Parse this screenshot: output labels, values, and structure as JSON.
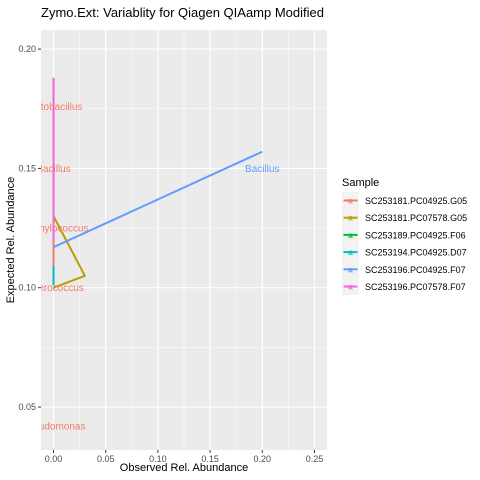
{
  "chart_data": {
    "type": "line",
    "title": "Zymo.Ext: Variablity for Qiagen QIAamp  Modified",
    "xlabel": "Observed Rel. Abundance",
    "ylabel": "Expected Rel. Abundance",
    "xlim": [
      -0.012,
      0.262
    ],
    "ylim": [
      0.032,
      0.208
    ],
    "x_ticks": [
      0.0,
      0.05,
      0.1,
      0.15,
      0.2,
      0.25
    ],
    "x_tick_labels": [
      "0.00",
      "0.05",
      "0.10",
      "0.15",
      "0.20",
      "0.25"
    ],
    "y_ticks": [
      0.05,
      0.1,
      0.15,
      0.2
    ],
    "y_tick_labels": [
      "0.05",
      "0.10",
      "0.15",
      "0.20"
    ],
    "grid": true,
    "legend_position": "right",
    "legend_title": "Sample",
    "series": [
      {
        "name": "SC253181.PC04925.G05",
        "color": "#F8766D",
        "points": [
          [
            0.0,
            0.12
          ],
          [
            0.0,
            0.107
          ]
        ]
      },
      {
        "name": "SC253181.PC07578.G05",
        "color": "#B79F00",
        "points": [
          [
            0.0,
            0.13
          ],
          [
            0.03,
            0.105
          ],
          [
            0.0,
            0.1
          ]
        ]
      },
      {
        "name": "SC253189.PC04925.F06",
        "color": "#00BA38",
        "points": [
          [
            0.0,
            0.101
          ],
          [
            0.0,
            0.107
          ]
        ]
      },
      {
        "name": "SC253194.PC04925.D07",
        "color": "#00BFC4",
        "points": [
          [
            0.0,
            0.101
          ],
          [
            0.0,
            0.109
          ]
        ]
      },
      {
        "name": "SC253196.PC04925.F07",
        "color": "#619CFF",
        "points": [
          [
            0.0,
            0.117
          ],
          [
            0.2,
            0.157
          ]
        ]
      },
      {
        "name": "SC253196.PC07578.F07",
        "color": "#F564E3",
        "points": [
          [
            0.0,
            0.12
          ],
          [
            0.0,
            0.188
          ]
        ]
      }
    ],
    "point_labels": [
      {
        "text": "Lactobacillus",
        "x": 0.0,
        "y": 0.176,
        "color": "#F8766D"
      },
      {
        "text": "Bacillus",
        "x": 0.0,
        "y": 0.15,
        "color": "#F8766D"
      },
      {
        "text": "Staphylococcus",
        "x": 0.0,
        "y": 0.125,
        "color": "#F8766D"
      },
      {
        "text": "Enterococcus",
        "x": 0.0,
        "y": 0.1,
        "color": "#F8766D"
      },
      {
        "text": "Pseudomonas",
        "x": 0.0,
        "y": 0.042,
        "color": "#F8766D"
      },
      {
        "text": "Bacillus",
        "x": 0.2,
        "y": 0.15,
        "color": "#619CFF"
      }
    ]
  }
}
